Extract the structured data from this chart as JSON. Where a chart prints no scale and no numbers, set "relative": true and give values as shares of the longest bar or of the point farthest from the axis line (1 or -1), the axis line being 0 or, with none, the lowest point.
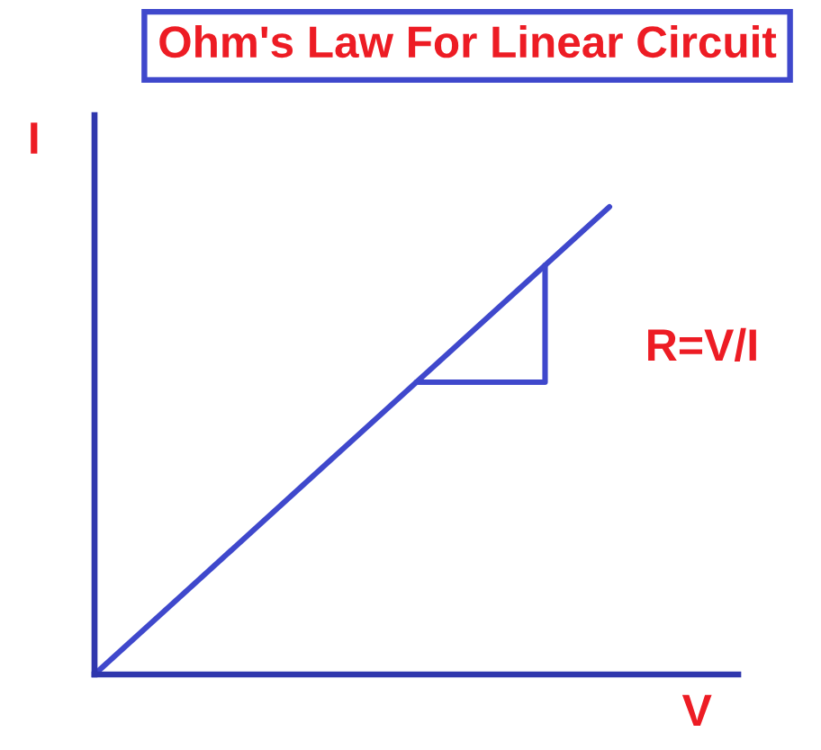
{
  "chart_data": {
    "type": "line",
    "title": "Ohm's Law For Linear Circuit",
    "xlabel": "V",
    "ylabel": "I",
    "annotations": [
      "R=V/I"
    ],
    "categories": [
      null,
      null,
      null,
      null,
      null,
      null,
      null,
      null,
      null,
      null,
      null
    ],
    "relative": true,
    "series": [
      {
        "color": "#3f48cc",
        "values": [
          0,
          0.125,
          0.25,
          0.375,
          0.5,
          0.625,
          0.75,
          0.875,
          1,
          null,
          null
        ]
      },
      {
        "type": "step",
        "color": "#3f48cc",
        "values": [
          null,
          null,
          null,
          null,
          null,
          0.625,
          0.625,
          0.875,
          null,
          null,
          null
        ]
      }
    ]
  }
}
